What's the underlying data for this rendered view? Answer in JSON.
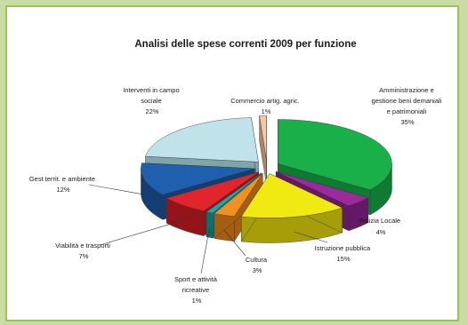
{
  "chart_data": {
    "type": "pie",
    "title": "Analisi delle spese correnti 2009  per funzione",
    "slices": [
      {
        "label": "Amministrazione e gestione beni demaniali e patrimoniali",
        "value": 35,
        "percent": "35%",
        "color": "#19b04a",
        "side": "#0f7a32"
      },
      {
        "label": "Polizia Locale",
        "value": 4,
        "percent": "4%",
        "color": "#9b2a9b",
        "side": "#651865"
      },
      {
        "label": "Istruzione pubblica",
        "value": 15,
        "percent": "15%",
        "color": "#f1ea12",
        "side": "#a59e08"
      },
      {
        "label": "Cultura",
        "value": 3,
        "percent": "3%",
        "color": "#f0901e",
        "side": "#a75d10"
      },
      {
        "label": "Sport e attività ricreative",
        "value": 1,
        "percent": "1%",
        "color": "#1aa8a8",
        "side": "#0d6e6e"
      },
      {
        "label": "Viabilità e trasporti",
        "value": 7,
        "percent": "7%",
        "color": "#e0262c",
        "side": "#951419"
      },
      {
        "label": "Gest territ. e ambiente",
        "value": 12,
        "percent": "12%",
        "color": "#1e5fae",
        "side": "#123e74"
      },
      {
        "label": "Interventi in campo sociale",
        "value": 22,
        "percent": "22%",
        "color": "#bfe3e8",
        "side": "#7fa4a9"
      },
      {
        "label": "Commercio artig. agric.",
        "value": 1,
        "percent": "1%",
        "color": "#f2c8a8",
        "side": "#b08466"
      }
    ]
  },
  "labels": {
    "amministrazione": [
      "Amministrazione e",
      "gestione beni demaniali",
      "e patrimoniali",
      "35%"
    ],
    "polizia": [
      "Polizia Locale",
      "4%"
    ],
    "istruzione": [
      "Istruzione pubblica",
      "15%"
    ],
    "cultura": [
      "Cultura",
      "3%"
    ],
    "sport": [
      "Sport e attività",
      "ricreative",
      "1%"
    ],
    "viabilita": [
      "Viabilità e trasporti",
      "7%"
    ],
    "gestterrit": [
      "Gest territ. e ambiente",
      "12%"
    ],
    "interventi": [
      "Interventi in campo",
      "sociale",
      "22%"
    ],
    "commercio": [
      "Commercio artig. agric.",
      "1%"
    ]
  }
}
